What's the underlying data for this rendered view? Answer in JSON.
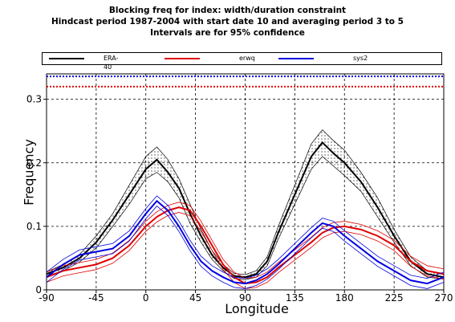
{
  "header": {
    "title_line1": "Blocking freq for index: width/duration constraint",
    "title_line2": "Hindcast period 1987-2004 with start date 10 and averaging period 3 to 5",
    "title_line3": "Intervals are for 95% confidence"
  },
  "chart_data": {
    "type": "line",
    "title": "Blocking freq for index: width/duration constraint",
    "xlabel": "Longitude",
    "ylabel": "Frequency",
    "xlim": [
      -90,
      270
    ],
    "ylim": [
      0,
      0.34
    ],
    "xticks": [
      -90,
      -45,
      0,
      45,
      90,
      135,
      180,
      225,
      270
    ],
    "yticks": [
      0,
      0.1,
      0.2,
      0.3
    ],
    "xtick_labels": [
      "-90",
      "-45",
      "0",
      "45",
      "90",
      "135",
      "180",
      "225",
      "270"
    ],
    "ytick_labels": [
      "0",
      "0.1",
      "0.2",
      "0.3"
    ],
    "grid": true,
    "legend_position": "top",
    "x": [
      -90,
      -75,
      -60,
      -45,
      -30,
      -15,
      0,
      10,
      20,
      30,
      40,
      50,
      60,
      70,
      80,
      90,
      100,
      110,
      120,
      135,
      150,
      160,
      170,
      180,
      195,
      210,
      225,
      240,
      255,
      270
    ],
    "series": [
      {
        "name": "ERA-40",
        "color": "#000000",
        "values": [
          0.025,
          0.035,
          0.05,
          0.075,
          0.11,
          0.15,
          0.19,
          0.205,
          0.185,
          0.16,
          0.12,
          0.085,
          0.055,
          0.035,
          0.022,
          0.02,
          0.025,
          0.045,
          0.09,
          0.15,
          0.21,
          0.232,
          0.215,
          0.2,
          0.17,
          0.13,
          0.085,
          0.045,
          0.025,
          0.02
        ],
        "lower": [
          0.022,
          0.03,
          0.044,
          0.066,
          0.1,
          0.135,
          0.175,
          0.185,
          0.17,
          0.145,
          0.105,
          0.075,
          0.048,
          0.03,
          0.018,
          0.016,
          0.02,
          0.038,
          0.08,
          0.135,
          0.19,
          0.21,
          0.195,
          0.18,
          0.155,
          0.115,
          0.075,
          0.038,
          0.02,
          0.017
        ],
        "upper": [
          0.028,
          0.04,
          0.056,
          0.085,
          0.12,
          0.165,
          0.21,
          0.225,
          0.205,
          0.175,
          0.135,
          0.095,
          0.062,
          0.04,
          0.026,
          0.024,
          0.03,
          0.052,
          0.1,
          0.165,
          0.23,
          0.252,
          0.235,
          0.22,
          0.185,
          0.145,
          0.095,
          0.052,
          0.03,
          0.024
        ]
      },
      {
        "name": "erwq",
        "color": "#e00000",
        "values": [
          0.02,
          0.03,
          0.035,
          0.04,
          0.05,
          0.07,
          0.1,
          0.115,
          0.125,
          0.13,
          0.125,
          0.1,
          0.07,
          0.04,
          0.02,
          0.01,
          0.012,
          0.02,
          0.035,
          0.055,
          0.075,
          0.09,
          0.098,
          0.1,
          0.095,
          0.085,
          0.07,
          0.045,
          0.03,
          0.025
        ],
        "hline": 0.32
      },
      {
        "name": "sys2",
        "color": "#0000e0",
        "values": [
          0.02,
          0.04,
          0.055,
          0.06,
          0.065,
          0.085,
          0.12,
          0.14,
          0.125,
          0.1,
          0.07,
          0.045,
          0.03,
          0.02,
          0.012,
          0.01,
          0.015,
          0.025,
          0.04,
          0.065,
          0.09,
          0.105,
          0.1,
          0.085,
          0.065,
          0.045,
          0.03,
          0.015,
          0.01,
          0.02
        ],
        "hline": 0.336
      }
    ]
  }
}
